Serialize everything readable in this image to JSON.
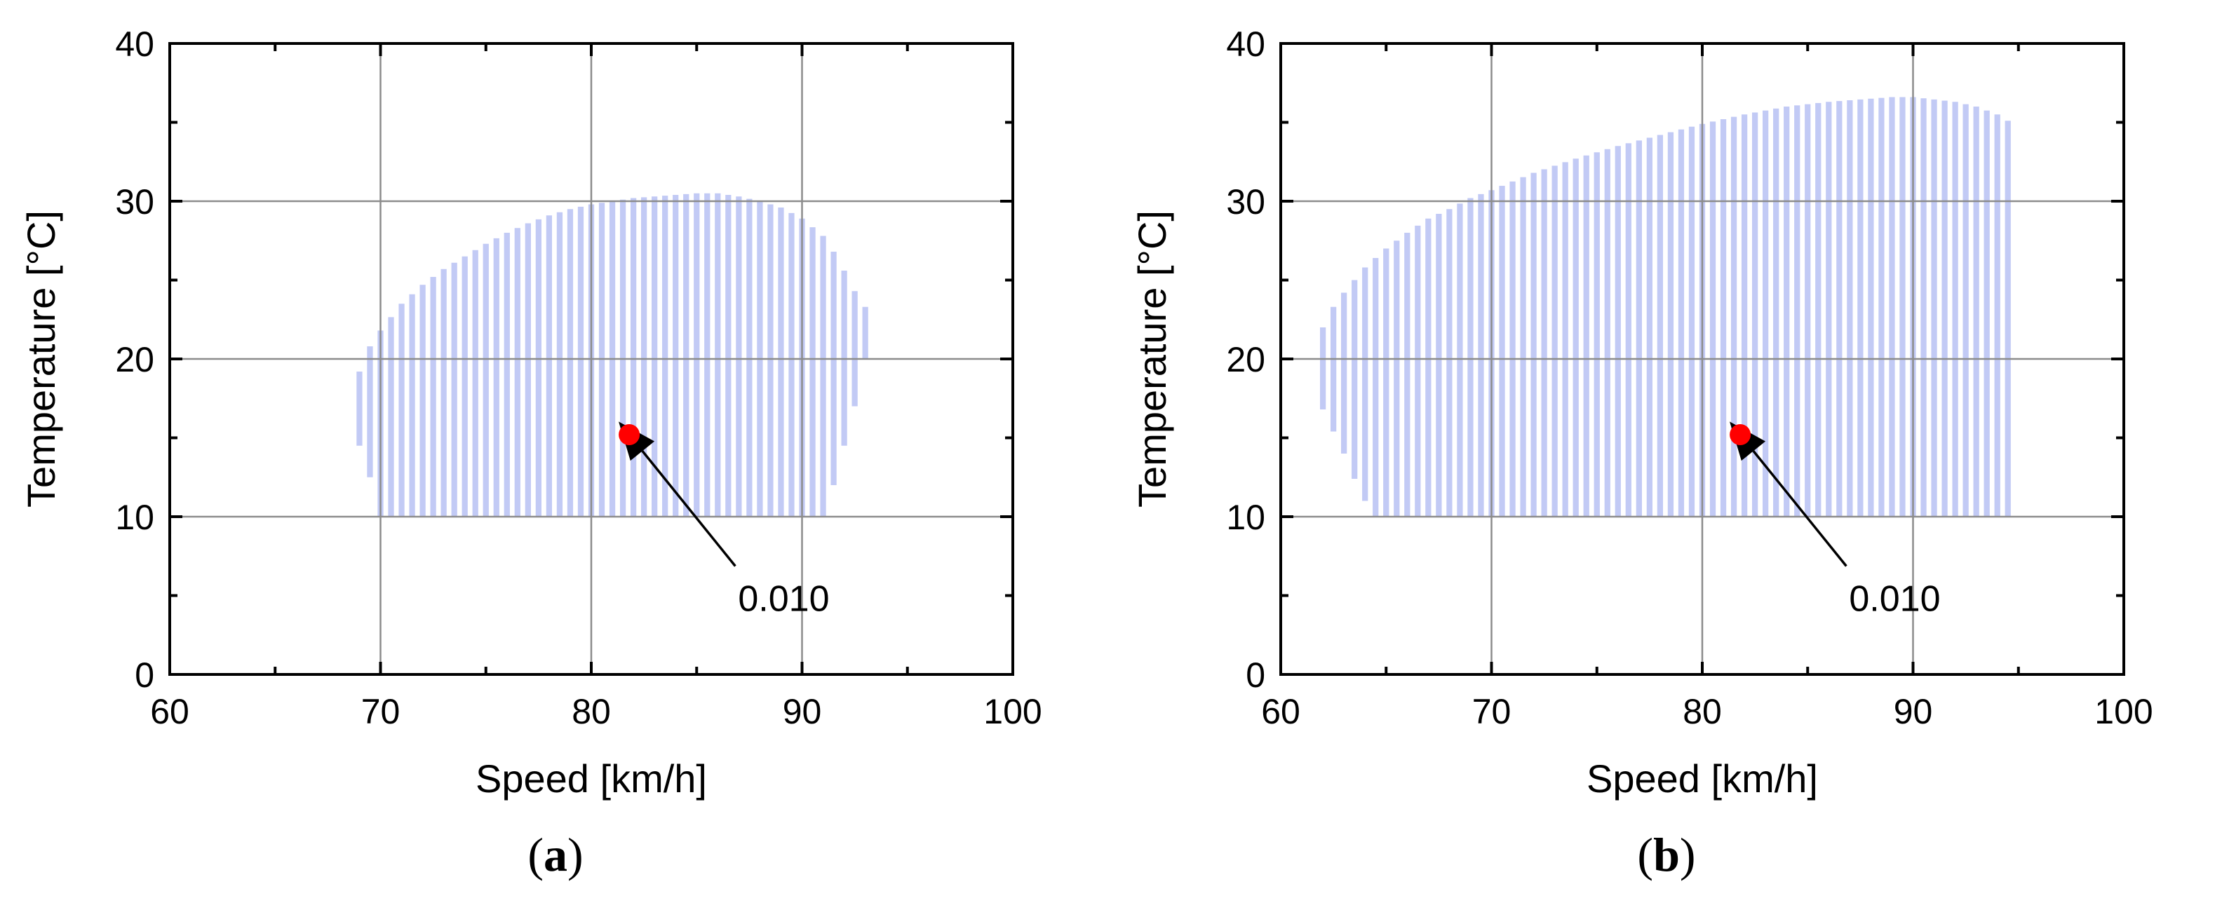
{
  "chart_data": [
    {
      "type": "bar",
      "panel_label": "a",
      "xlabel": "Speed [km/h]",
      "ylabel": "Temperature [°C]",
      "xlim": [
        60,
        100
      ],
      "ylim": [
        0,
        40
      ],
      "xticks": [
        60,
        70,
        80,
        90,
        100
      ],
      "yticks": [
        0,
        10,
        20,
        30,
        40
      ],
      "grid": true,
      "bar_color": "#c2caf5",
      "speed_step": 0.5,
      "envelope_speed": [
        69.0,
        69.5,
        70.0,
        71.0,
        72.0,
        73.0,
        74.0,
        75.0,
        76.0,
        77.0,
        78.0,
        79.0,
        80.0,
        81.0,
        82.0,
        83.0,
        84.0,
        85.0,
        86.0,
        87.0,
        88.0,
        89.0,
        90.0,
        91.0,
        91.5,
        92.0,
        92.5,
        93.0
      ],
      "envelope_low": [
        14.5,
        12.5,
        10.0,
        10.0,
        10.0,
        10.0,
        10.0,
        10.0,
        10.0,
        10.0,
        10.0,
        10.0,
        10.0,
        10.0,
        10.0,
        10.0,
        10.0,
        10.0,
        10.0,
        10.0,
        10.0,
        10.0,
        10.0,
        10.0,
        12.0,
        14.5,
        17.0,
        20.0
      ],
      "envelope_high": [
        19.2,
        20.8,
        21.8,
        23.5,
        24.7,
        25.7,
        26.5,
        27.3,
        28.0,
        28.6,
        29.1,
        29.5,
        29.8,
        30.0,
        30.2,
        30.3,
        30.4,
        30.5,
        30.5,
        30.3,
        30.0,
        29.6,
        28.9,
        27.8,
        26.8,
        25.6,
        24.3,
        23.3
      ],
      "point": {
        "speed": 81.8,
        "temperature": 15.2,
        "color": "#ff0000"
      },
      "annotation": {
        "text": "0.010",
        "speed": 87.3,
        "temperature": 6.6
      }
    },
    {
      "type": "bar",
      "panel_label": "b",
      "xlabel": "Speed [km/h]",
      "ylabel": "Temperature [°C]",
      "xlim": [
        60,
        100
      ],
      "ylim": [
        0,
        40
      ],
      "xticks": [
        60,
        70,
        80,
        90,
        100
      ],
      "yticks": [
        0,
        10,
        20,
        30,
        40
      ],
      "grid": true,
      "bar_color": "#c2caf5",
      "speed_step": 0.5,
      "envelope_speed": [
        62.0,
        62.5,
        63.0,
        63.5,
        64.0,
        64.5,
        65.0,
        66.0,
        67.0,
        68.0,
        69.0,
        70.0,
        72.0,
        74.0,
        76.0,
        78.0,
        80.0,
        82.0,
        84.0,
        86.0,
        88.0,
        89.0,
        90.0,
        92.0,
        93.0,
        94.0,
        94.5
      ],
      "envelope_low": [
        16.8,
        15.4,
        14.0,
        12.4,
        11.0,
        10.0,
        10.0,
        10.0,
        10.0,
        10.0,
        10.0,
        10.0,
        10.0,
        10.0,
        10.0,
        10.0,
        10.0,
        10.0,
        10.0,
        10.0,
        10.0,
        10.0,
        10.0,
        10.0,
        10.0,
        10.0,
        10.0
      ],
      "envelope_high": [
        22.0,
        23.3,
        24.2,
        25.0,
        25.8,
        26.4,
        27.0,
        28.0,
        28.9,
        29.5,
        30.2,
        30.7,
        31.8,
        32.7,
        33.5,
        34.2,
        34.9,
        35.5,
        36.0,
        36.3,
        36.5,
        36.6,
        36.6,
        36.3,
        36.0,
        35.5,
        35.1
      ],
      "point": {
        "speed": 81.8,
        "temperature": 15.2,
        "color": "#ff0000"
      },
      "annotation": {
        "text": "0.010",
        "speed": 87.3,
        "temperature": 6.6
      }
    }
  ]
}
